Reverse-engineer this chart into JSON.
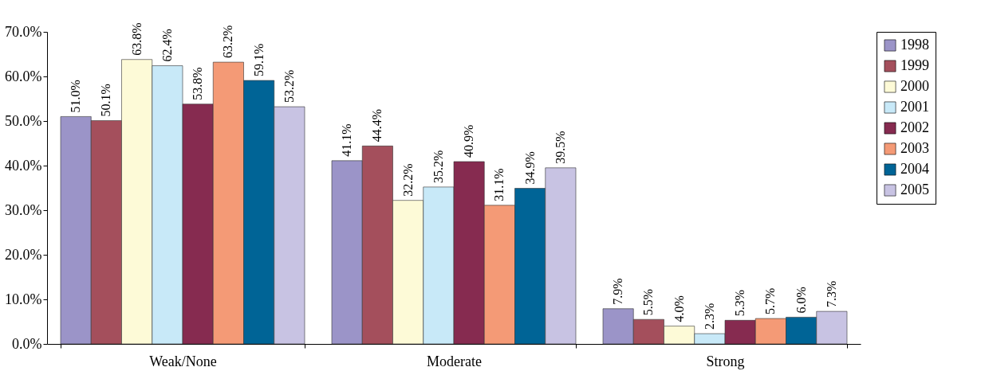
{
  "chart_data": {
    "type": "bar",
    "categories": [
      "Weak/None",
      "Moderate",
      "Strong"
    ],
    "series": [
      {
        "name": "1998",
        "color": "#9b94c8",
        "values": [
          51.0,
          41.1,
          7.9
        ],
        "value_labels": [
          "51.0%",
          "41.1%",
          "7.9%"
        ]
      },
      {
        "name": "1999",
        "color": "#a44f5c",
        "values": [
          50.1,
          44.4,
          5.5
        ],
        "value_labels": [
          "50.1%",
          "44.4%",
          "5.5%"
        ]
      },
      {
        "name": "2000",
        "color": "#fdfad7",
        "values": [
          63.8,
          32.2,
          4.0
        ],
        "value_labels": [
          "63.8%",
          "32.2%",
          "4.0%"
        ]
      },
      {
        "name": "2001",
        "color": "#c8e9f8",
        "values": [
          62.4,
          35.2,
          2.3
        ],
        "value_labels": [
          "62.4%",
          "35.2%",
          "2.3%"
        ]
      },
      {
        "name": "2002",
        "color": "#862b50",
        "values": [
          53.8,
          40.9,
          5.3
        ],
        "value_labels": [
          "53.8%",
          "40.9%",
          "5.3%"
        ]
      },
      {
        "name": "2003",
        "color": "#f49a76",
        "values": [
          63.2,
          31.1,
          5.7
        ],
        "value_labels": [
          "63.2%",
          "31.1%",
          "5.7%"
        ]
      },
      {
        "name": "2004",
        "color": "#006496",
        "values": [
          59.1,
          34.9,
          6.0
        ],
        "value_labels": [
          "59.1%",
          "34.9%",
          "6.0%"
        ]
      },
      {
        "name": "2005",
        "color": "#c8c3e3",
        "values": [
          53.2,
          39.5,
          7.3
        ],
        "value_labels": [
          "53.2%",
          "39.5%",
          "7.3%"
        ]
      }
    ],
    "ylim": [
      0,
      70
    ],
    "yticks": [
      {
        "value": 0,
        "label": "0.0%"
      },
      {
        "value": 10,
        "label": "10.0%"
      },
      {
        "value": 20,
        "label": "20.0%"
      },
      {
        "value": 30,
        "label": "30.0%"
      },
      {
        "value": 40,
        "label": "40.0%"
      },
      {
        "value": 50,
        "label": "50.0%"
      },
      {
        "value": 60,
        "label": "60.0%"
      },
      {
        "value": 70,
        "label": "70.0%"
      }
    ],
    "grid": false,
    "legend": "right"
  }
}
